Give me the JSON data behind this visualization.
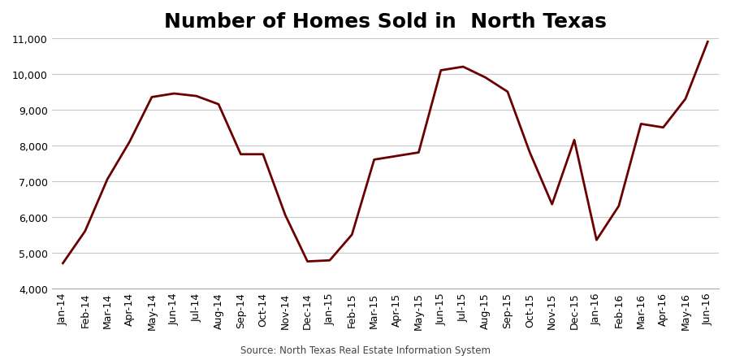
{
  "title": "Number of Homes Sold in  North Texas",
  "source": "Source: North Texas Real Estate Information System",
  "line_color": "#6B0000",
  "background_color": "#FFFFFF",
  "grid_color": "#C8C8C8",
  "labels": [
    "Jan-14",
    "Feb-14",
    "Mar-14",
    "Apr-14",
    "May-14",
    "Jun-14",
    "Jul-14",
    "Aug-14",
    "Sep-14",
    "Oct-14",
    "Nov-14",
    "Dec-14",
    "Jan-15",
    "Feb-15",
    "Mar-15",
    "Apr-15",
    "May-15",
    "Jun-15",
    "Jul-15",
    "Aug-15",
    "Sep-15",
    "Oct-15",
    "Nov-15",
    "Dec-15",
    "Jan-16",
    "Feb-16",
    "Mar-16",
    "Apr-16",
    "May-16",
    "Jun-16"
  ],
  "values": [
    4700,
    5600,
    7050,
    8100,
    9350,
    9450,
    9380,
    9150,
    7750,
    7750,
    6050,
    4750,
    4780,
    5500,
    7600,
    7700,
    7800,
    10100,
    10200,
    9900,
    9500,
    7800,
    6350,
    8150,
    5350,
    6300,
    8600,
    8500,
    9300,
    10900
  ],
  "ylim": [
    4000,
    11000
  ],
  "yticks": [
    4000,
    5000,
    6000,
    7000,
    8000,
    9000,
    10000,
    11000
  ],
  "title_fontsize": 18,
  "tick_fontsize": 9,
  "source_fontsize": 8.5,
  "line_width": 2.0
}
